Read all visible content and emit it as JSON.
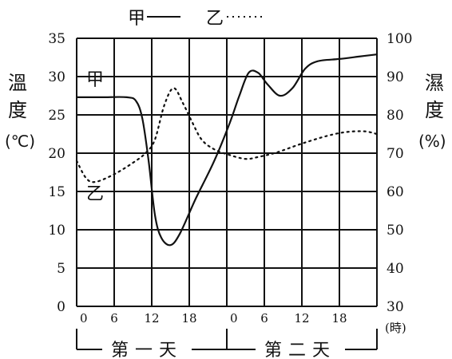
{
  "chart_data": {
    "type": "line",
    "legend": {
      "position": "top-center",
      "items": [
        {
          "name": "甲",
          "style": "solid"
        },
        {
          "name": "乙",
          "style": "dotted"
        }
      ]
    },
    "left_axis": {
      "label": [
        "溫",
        "度",
        "(℃)"
      ],
      "ticks": [
        "0",
        "5",
        "10",
        "15",
        "20",
        "25",
        "30",
        "35"
      ],
      "range": [
        0,
        35
      ]
    },
    "right_axis": {
      "label": [
        "濕",
        "度",
        "(%)"
      ],
      "ticks": [
        "30",
        "40",
        "50",
        "60",
        "70",
        "80",
        "90",
        "100"
      ],
      "range": [
        30,
        100
      ]
    },
    "x_axis": {
      "ticks": [
        "0",
        "6",
        "12",
        "18",
        "0",
        "6",
        "12",
        "18"
      ],
      "unit": "(時)",
      "day_labels": [
        "第一天",
        "第二天"
      ],
      "range_hours": [
        0,
        48
      ]
    },
    "grid": true,
    "series": [
      {
        "name": "甲",
        "axis": "left",
        "style": "solid",
        "points": [
          [
            0,
            27.3
          ],
          [
            4,
            27.3
          ],
          [
            8,
            27.3
          ],
          [
            9.5,
            26.8
          ],
          [
            10.5,
            24.5
          ],
          [
            11.5,
            19
          ],
          [
            12.5,
            12
          ],
          [
            13.5,
            9
          ],
          [
            15,
            8
          ],
          [
            16.5,
            9.5
          ],
          [
            19,
            14
          ],
          [
            22,
            19
          ],
          [
            24.5,
            24
          ],
          [
            26,
            27.5
          ],
          [
            27.5,
            30.5
          ],
          [
            29,
            30.5
          ],
          [
            30.5,
            29
          ],
          [
            32.5,
            27.5
          ],
          [
            34.5,
            28.5
          ],
          [
            36.5,
            31
          ],
          [
            38.5,
            32
          ],
          [
            42,
            32.3
          ],
          [
            45,
            32.6
          ],
          [
            48,
            32.9
          ]
        ]
      },
      {
        "name": "乙",
        "axis": "right",
        "style": "dotted",
        "points": [
          [
            0,
            68
          ],
          [
            1.5,
            63.5
          ],
          [
            3,
            62.5
          ],
          [
            6,
            64.5
          ],
          [
            9,
            67.5
          ],
          [
            11,
            70
          ],
          [
            12.5,
            73.5
          ],
          [
            14,
            82.5
          ],
          [
            15.5,
            87
          ],
          [
            17,
            83
          ],
          [
            18.5,
            78
          ],
          [
            20,
            73.5
          ],
          [
            22,
            71
          ],
          [
            24.5,
            69.5
          ],
          [
            27,
            68.5
          ],
          [
            29,
            69
          ],
          [
            32,
            70.2
          ],
          [
            36,
            72.5
          ],
          [
            40,
            74.5
          ],
          [
            43,
            75.5
          ],
          [
            46,
            75.7
          ],
          [
            48,
            75
          ]
        ]
      }
    ],
    "annotations": [
      {
        "text": "甲",
        "near_series": "甲"
      },
      {
        "text": "乙",
        "near_series": "乙"
      }
    ]
  }
}
